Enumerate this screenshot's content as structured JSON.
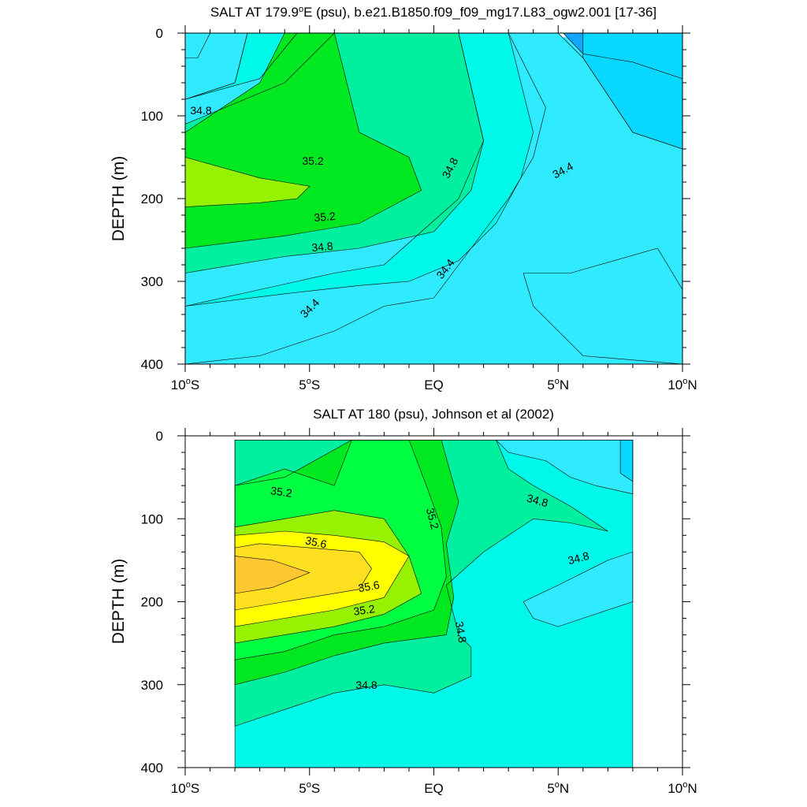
{
  "chart_data": [
    {
      "type": "contour",
      "title": "SALT AT 179.9°E (psu), b.e21.B1850.f09_f09_mg17.L83_ogw2.001 [17-36]",
      "title_parts": {
        "before": "SALT AT 179.9",
        "degree": "o",
        "after": "E (psu), b.e21.B1850.f09_f09_mg17.L83_ogw2.001 [17-36]"
      },
      "ylabel": "DEPTH (m)",
      "xlim": [
        -10,
        10
      ],
      "ylim": [
        400,
        0
      ],
      "x_ticks": [
        -10,
        -5,
        0,
        5,
        10
      ],
      "x_tick_labels": [
        {
          "num": "10",
          "deg": "o",
          "dir": "S"
        },
        {
          "num": "5",
          "deg": "o",
          "dir": "S"
        },
        {
          "num": "EQ",
          "deg": "",
          "dir": ""
        },
        {
          "num": "5",
          "deg": "o",
          "dir": "N"
        },
        {
          "num": "10",
          "deg": "o",
          "dir": "N"
        }
      ],
      "y_ticks": [
        0,
        100,
        200,
        300,
        400
      ],
      "y_tick_labels": [
        "0",
        "100",
        "200",
        "300",
        "400"
      ],
      "contour_labels": [
        "34.8",
        "35.2",
        "34.8",
        "34.4",
        "35.2",
        "34.8",
        "34.4",
        "34.4"
      ],
      "data_extent": {
        "x": [
          -10,
          10
        ],
        "depth": [
          5,
          400
        ]
      },
      "bands": [
        {
          "range": [
            34.0,
            34.2
          ],
          "color": "#12a6ff",
          "outline": [
            [
              7,
              0
            ],
            [
              10,
              0
            ],
            [
              10,
              55
            ],
            [
              8,
              35
            ],
            [
              6,
              25
            ],
            [
              5.2,
              0
            ]
          ]
        },
        {
          "range": [
            34.2,
            34.4
          ],
          "color": "#08d8ff",
          "outline": [
            [
              6,
              0
            ],
            [
              10,
              0
            ],
            [
              10,
              140
            ],
            [
              8,
              120
            ],
            [
              6,
              30
            ]
          ]
        },
        {
          "range": [
            34.2,
            34.4
          ],
          "color": "#08d8ff",
          "outline": [
            [
              3.6,
              290
            ],
            [
              5.5,
              290
            ],
            [
              9,
              260
            ],
            [
              10,
              310
            ],
            [
              10,
              400
            ],
            [
              6,
              390
            ],
            [
              4,
              330
            ]
          ]
        },
        {
          "range": [
            34.2,
            34.4
          ],
          "color": "#08d8ff",
          "outline": [
            [
              -10,
              0
            ],
            [
              -9,
              0
            ],
            [
              -9.5,
              30
            ],
            [
              -10,
              30
            ]
          ]
        },
        {
          "range": [
            34.4,
            34.6
          ],
          "color": "#30eaff",
          "outline": [
            [
              -10,
              400
            ],
            [
              10,
              400
            ],
            [
              10,
              140
            ],
            [
              8,
              120
            ],
            [
              6,
              30
            ],
            [
              5,
              0
            ],
            [
              3,
              0
            ],
            [
              4.5,
              90
            ],
            [
              4,
              150
            ],
            [
              3,
              200
            ],
            [
              2,
              240
            ],
            [
              1,
              280
            ],
            [
              0,
              320
            ],
            [
              -2,
              330
            ],
            [
              -4,
              360
            ],
            [
              -7,
              390
            ],
            [
              -10,
              400
            ]
          ]
        },
        {
          "range": [
            34.4,
            34.6
          ],
          "color": "#30eaff",
          "outline": [
            [
              -10,
              0
            ],
            [
              -7.5,
              0
            ],
            [
              -8,
              60
            ],
            [
              -10,
              80
            ]
          ]
        },
        {
          "range": [
            34.6,
            34.8
          ],
          "color": "#00f8e8",
          "outline": [
            [
              -10,
              330
            ],
            [
              -6,
              315
            ],
            [
              -3,
              305
            ],
            [
              -1,
              300
            ],
            [
              1,
              275
            ],
            [
              2.5,
              230
            ],
            [
              3.5,
              175
            ],
            [
              4,
              120
            ],
            [
              3,
              0
            ],
            [
              1,
              0
            ],
            [
              2,
              130
            ],
            [
              1,
              200
            ],
            [
              -2,
              280
            ],
            [
              -4,
              290
            ],
            [
              -7,
              310
            ],
            [
              -10,
              330
            ]
          ]
        },
        {
          "range": [
            34.6,
            34.8
          ],
          "color": "#00f8e8",
          "outline": [
            [
              -10,
              80
            ],
            [
              -7,
              55
            ],
            [
              -5.5,
              0
            ],
            [
              -7.5,
              0
            ],
            [
              -8,
              60
            ],
            [
              -10,
              80
            ]
          ]
        },
        {
          "range": [
            34.8,
            35.0
          ],
          "color": "#00f0a0",
          "outline": [
            [
              -10,
              290
            ],
            [
              -6,
              270
            ],
            [
              -3,
              260
            ],
            [
              0,
              240
            ],
            [
              1.5,
              190
            ],
            [
              2,
              130
            ],
            [
              1,
              0
            ],
            [
              -4,
              0
            ],
            [
              -6,
              60
            ],
            [
              -10,
              110
            ],
            [
              -10,
              290
            ]
          ]
        },
        {
          "range": [
            35.0,
            35.2
          ],
          "color": "#00e820",
          "outline": [
            [
              -10,
              260
            ],
            [
              -6,
              245
            ],
            [
              -3,
              230
            ],
            [
              -0.5,
              190
            ],
            [
              -1,
              150
            ],
            [
              -3,
              120
            ],
            [
              -4,
              0
            ],
            [
              -6,
              0
            ],
            [
              -7,
              60
            ],
            [
              -10,
              120
            ],
            [
              -10,
              260
            ]
          ]
        },
        {
          "range": [
            35.2,
            35.4
          ],
          "color": "#96f200",
          "outline": [
            [
              -10,
              150
            ],
            [
              -7,
              175
            ],
            [
              -5,
              185
            ],
            [
              -5.5,
              200
            ],
            [
              -7,
              205
            ],
            [
              -10,
              210
            ]
          ]
        }
      ]
    },
    {
      "type": "contour",
      "title": "SALT AT 180 (psu), Johnson et al (2002)",
      "ylabel": "DEPTH (m)",
      "xlim": [
        -10,
        10
      ],
      "ylim": [
        400,
        0
      ],
      "x_ticks": [
        -10,
        -5,
        0,
        5,
        10
      ],
      "x_tick_labels": [
        {
          "num": "10",
          "deg": "o",
          "dir": "S"
        },
        {
          "num": "5",
          "deg": "o",
          "dir": "S"
        },
        {
          "num": "EQ",
          "deg": "",
          "dir": ""
        },
        {
          "num": "5",
          "deg": "o",
          "dir": "N"
        },
        {
          "num": "10",
          "deg": "o",
          "dir": "N"
        }
      ],
      "y_ticks": [
        0,
        100,
        200,
        300,
        400
      ],
      "y_tick_labels": [
        "0",
        "100",
        "200",
        "300",
        "400"
      ],
      "contour_labels": [
        "35.2",
        "35.6",
        "35.2",
        "34.8",
        "35.6",
        "35.2",
        "34.8",
        "34.8",
        "34.8"
      ],
      "data_extent": {
        "x": [
          -8,
          8
        ],
        "depth": [
          5,
          400
        ]
      },
      "bands": [
        {
          "range": [
            34.6,
            34.8
          ],
          "color": "#00f8e8",
          "outline": [
            [
              -8,
              5
            ],
            [
              8,
              5
            ],
            [
              8,
              400
            ],
            [
              -8,
              400
            ]
          ]
        },
        {
          "range": [
            34.4,
            34.6
          ],
          "color": "#30eaff",
          "outline": [
            [
              3.6,
              200
            ],
            [
              5,
              180
            ],
            [
              7,
              150
            ],
            [
              8,
              140
            ],
            [
              8,
              200
            ],
            [
              6,
              220
            ],
            [
              5,
              230
            ],
            [
              4,
              220
            ]
          ]
        },
        {
          "range": [
            34.4,
            34.6
          ],
          "color": "#30eaff",
          "outline": [
            [
              2.5,
              5
            ],
            [
              8,
              5
            ],
            [
              8,
              70
            ],
            [
              6.5,
              60
            ],
            [
              5.5,
              50
            ],
            [
              4.5,
              30
            ],
            [
              3,
              20
            ]
          ]
        },
        {
          "range": [
            34.2,
            34.4
          ],
          "color": "#08d8ff",
          "outline": [
            [
              7.5,
              5
            ],
            [
              8,
              5
            ],
            [
              8,
              55
            ],
            [
              7.5,
              45
            ]
          ]
        },
        {
          "range": [
            34.8,
            35.0
          ],
          "color": "#00f0a0",
          "outline": [
            [
              -8,
              350
            ],
            [
              -6,
              330
            ],
            [
              -4,
              310
            ],
            [
              -2,
              300
            ],
            [
              0,
              310
            ],
            [
              1.5,
              290
            ],
            [
              1.5,
              255
            ],
            [
              1,
              240
            ],
            [
              0.5,
              180
            ],
            [
              2,
              140
            ],
            [
              3,
              120
            ],
            [
              4,
              100
            ],
            [
              5.5,
              105
            ],
            [
              7,
              115
            ],
            [
              5.5,
              85
            ],
            [
              4,
              60
            ],
            [
              3,
              40
            ],
            [
              2.5,
              5
            ],
            [
              -8,
              5
            ]
          ]
        },
        {
          "range": [
            35.0,
            35.2
          ],
          "color": "#00e820",
          "outline": [
            [
              -8,
              300
            ],
            [
              -6,
              285
            ],
            [
              -4,
              265
            ],
            [
              -2,
              250
            ],
            [
              0.5,
              240
            ],
            [
              0.8,
              195
            ],
            [
              0.5,
              130
            ],
            [
              1,
              80
            ],
            [
              0.3,
              5
            ],
            [
              -3.3,
              5
            ],
            [
              -6,
              50
            ],
            [
              -8,
              60
            ]
          ]
        },
        {
          "range": [
            35.2,
            35.4
          ],
          "color": "#00ff40",
          "outline": [
            [
              -8,
              270
            ],
            [
              -6,
              260
            ],
            [
              -4,
              240
            ],
            [
              -2,
              230
            ],
            [
              0,
              210
            ],
            [
              0.5,
              170
            ],
            [
              0.3,
              110
            ],
            [
              -0.3,
              60
            ],
            [
              -1,
              5
            ],
            [
              -3.3,
              5
            ],
            [
              -4,
              60
            ],
            [
              -6,
              40
            ],
            [
              -8,
              60
            ]
          ]
        },
        {
          "range": [
            35.4,
            35.6
          ],
          "color": "#96f200",
          "outline": [
            [
              -8,
              250
            ],
            [
              -6,
              240
            ],
            [
              -4,
              230
            ],
            [
              -2,
              215
            ],
            [
              -0.5,
              190
            ],
            [
              -1,
              145
            ],
            [
              -2,
              100
            ],
            [
              -4,
              90
            ],
            [
              -6,
              100
            ],
            [
              -8,
              110
            ]
          ]
        },
        {
          "range": [
            35.6,
            35.8
          ],
          "color": "#ffff00",
          "outline": [
            [
              -8,
              230
            ],
            [
              -6,
              220
            ],
            [
              -4,
              210
            ],
            [
              -2,
              195
            ],
            [
              -1,
              145
            ],
            [
              -2,
              128
            ],
            [
              -4,
              120
            ],
            [
              -6,
              115
            ],
            [
              -8,
              120
            ]
          ]
        },
        {
          "range": [
            35.8,
            36.0
          ],
          "color": "#ffe020",
          "outline": [
            [
              -8,
              210
            ],
            [
              -6,
              200
            ],
            [
              -3,
              185
            ],
            [
              -2.5,
              160
            ],
            [
              -3,
              140
            ],
            [
              -5,
              135
            ],
            [
              -7,
              130
            ],
            [
              -8,
              135
            ]
          ]
        },
        {
          "range": [
            36.0,
            36.2
          ],
          "color": "#ffc830",
          "outline": [
            [
              -8,
              190
            ],
            [
              -6.5,
              183
            ],
            [
              -5,
              165
            ],
            [
              -6.5,
              150
            ],
            [
              -8,
              145
            ]
          ]
        }
      ]
    }
  ]
}
